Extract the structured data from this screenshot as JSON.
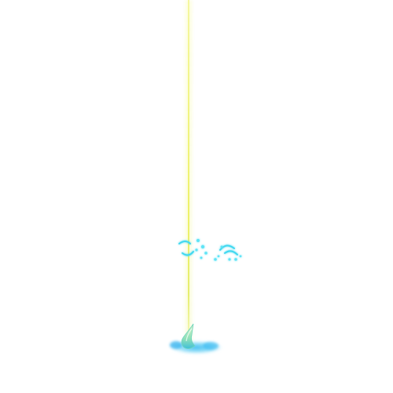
{
  "scene": {
    "background": "#ffffff",
    "beam_color": "#eef26a",
    "sparkle_color": "#40d8f0",
    "splash_color": "#2fb8f0",
    "splash_leaf_color": "#8fe0b8"
  }
}
